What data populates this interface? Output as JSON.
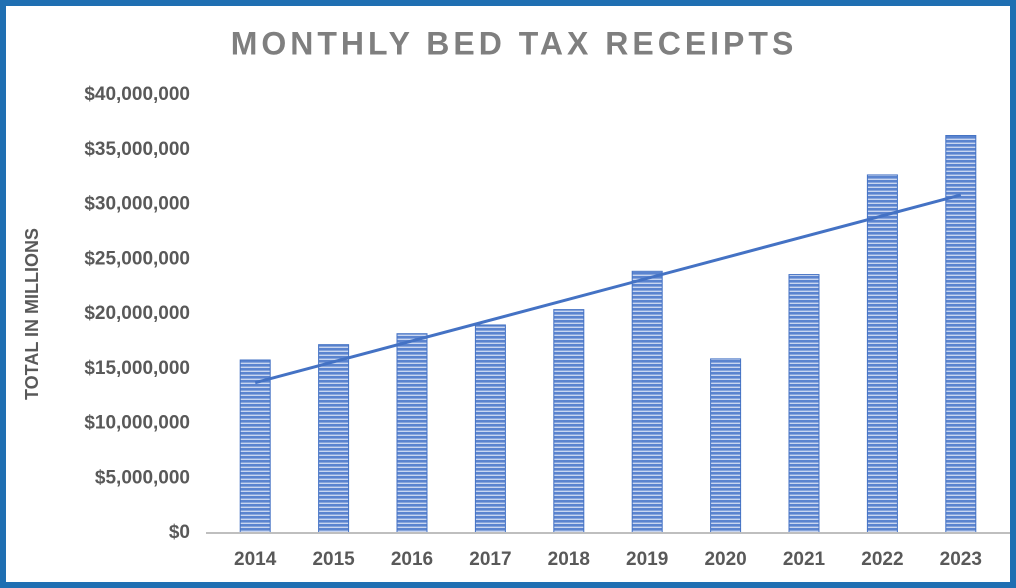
{
  "chart_data": {
    "type": "bar",
    "title": "MONTHLY BED TAX RECEIPTS",
    "y_axis_label": "TOTAL IN MILLIONS",
    "categories": [
      "2014",
      "2015",
      "2016",
      "2017",
      "2018",
      "2019",
      "2020",
      "2021",
      "2022",
      "2023"
    ],
    "values": [
      15800000,
      17200000,
      18200000,
      19000000,
      20400000,
      23900000,
      15900000,
      23600000,
      32700000,
      36300000
    ],
    "color": "#4472c4",
    "trendline": "linear",
    "trendline_color": "#4472c4",
    "ylim": [
      0,
      40000000
    ],
    "yticks": [
      {
        "value": 0,
        "label": "$0"
      },
      {
        "value": 5000000,
        "label": "$5,000,000"
      },
      {
        "value": 10000000,
        "label": "$10,000,000"
      },
      {
        "value": 15000000,
        "label": "$15,000,000"
      },
      {
        "value": 20000000,
        "label": "$20,000,000"
      },
      {
        "value": 25000000,
        "label": "$25,000,000"
      },
      {
        "value": 30000000,
        "label": "$30,000,000"
      },
      {
        "value": 35000000,
        "label": "$35,000,000"
      },
      {
        "value": 40000000,
        "label": "$40,000,000"
      }
    ],
    "grid": false
  }
}
